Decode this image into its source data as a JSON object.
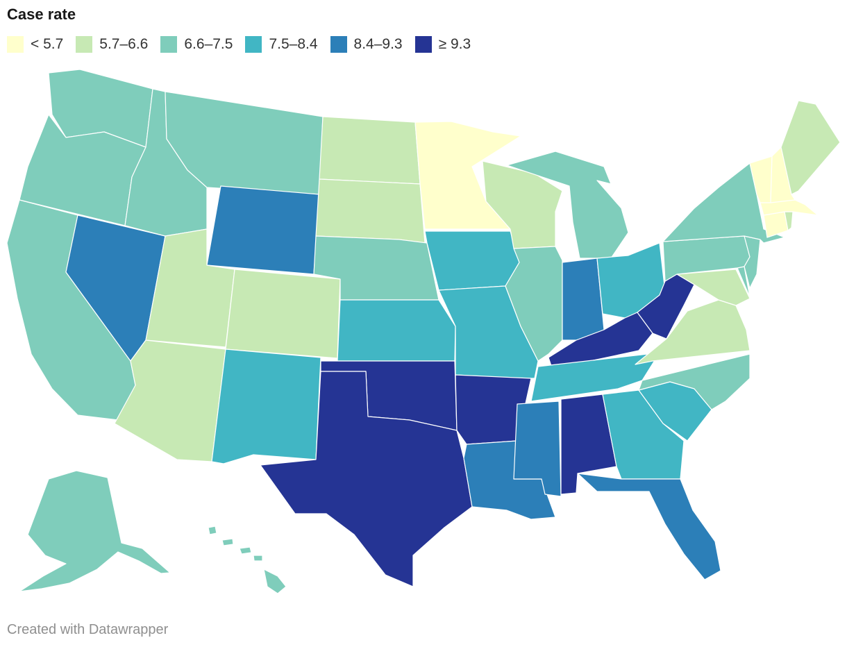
{
  "title": "Case rate",
  "credit": "Created with Datawrapper",
  "legend": [
    {
      "label": "< 5.7",
      "color": "#ffffcc"
    },
    {
      "label": "5.7–6.6",
      "color": "#c7e9b4"
    },
    {
      "label": "6.6–7.5",
      "color": "#7fcdbb"
    },
    {
      "label": "7.5–8.4",
      "color": "#41b6c4"
    },
    {
      "label": "8.4–9.3",
      "color": "#2c7fb8"
    },
    {
      "label": "≥ 9.3",
      "color": "#253494"
    }
  ],
  "state_bins": {
    "WA": 2,
    "OR": 2,
    "CA": 2,
    "NV": 4,
    "ID": 2,
    "MT": 2,
    "WY": 4,
    "UT": 1,
    "AZ": 1,
    "CO": 1,
    "NM": 3,
    "ND": 1,
    "SD": 1,
    "NE": 2,
    "KS": 3,
    "OK": 5,
    "TX": 5,
    "MN": 0,
    "IA": 3,
    "MO": 3,
    "AR": 5,
    "LA": 4,
    "WI": 1,
    "IL": 2,
    "MI": 2,
    "IN": 4,
    "OH": 3,
    "KY": 5,
    "TN": 3,
    "MS": 4,
    "AL": 5,
    "GA": 3,
    "FL": 4,
    "SC": 3,
    "NC": 2,
    "VA": 1,
    "WV": 5,
    "PA": 2,
    "NY": 2,
    "NJ": 2,
    "DE": 2,
    "MD": 1,
    "CT": 0,
    "RI": 1,
    "MA": 0,
    "VT": 0,
    "NH": 0,
    "ME": 1,
    "AK": 2,
    "HI": 2
  }
}
